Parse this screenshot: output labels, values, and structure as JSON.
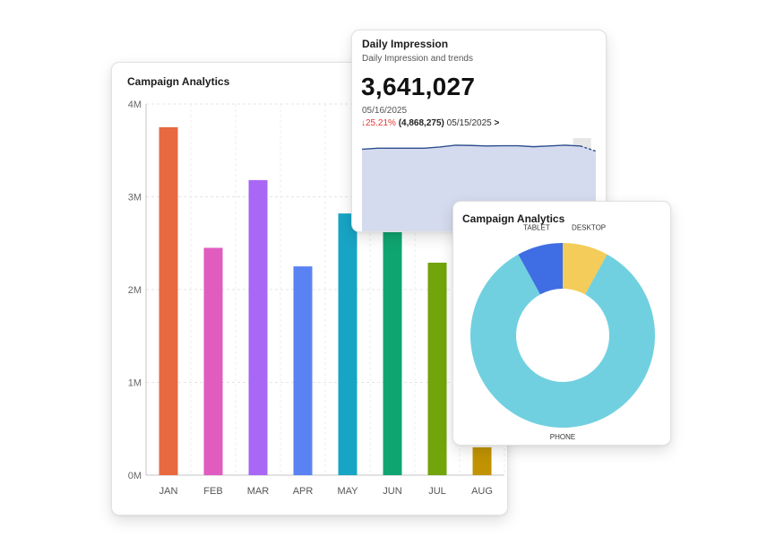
{
  "bar_card": {
    "title": "Campaign Analytics"
  },
  "impression_card": {
    "title": "Daily Impression",
    "subtitle": "Daily Impression and trends",
    "value": "3,641,027",
    "date": "05/16/2025",
    "change_arrow": "↓",
    "change_pct": "25.21%",
    "previous_value": "(4,868,275)",
    "previous_date": "05/15/2025",
    "more_glyph": ">"
  },
  "pie_card": {
    "title": "Campaign Analytics"
  },
  "chart_data": [
    {
      "type": "bar",
      "title": "Campaign Analytics",
      "categories": [
        "JAN",
        "FEB",
        "MAR",
        "APR",
        "MAY",
        "JUN",
        "JUL",
        "AUG"
      ],
      "values": [
        3750000,
        2450000,
        3180000,
        2250000,
        2820000,
        2700000,
        2290000,
        300000
      ],
      "colors": [
        "#e8683f",
        "#e05cbf",
        "#a967f5",
        "#5b82f3",
        "#18a4c4",
        "#0fa571",
        "#72a40b",
        "#c19303"
      ],
      "ylim": [
        0,
        4000000
      ],
      "yticks": [
        0,
        1000000,
        2000000,
        3000000,
        4000000
      ],
      "ytick_labels": [
        "0M",
        "1M",
        "2M",
        "3M",
        "4M"
      ],
      "grid": true,
      "xlabel": "",
      "ylabel": ""
    },
    {
      "type": "area",
      "title": "Daily Impression",
      "values": [
        3.38,
        3.42,
        3.42,
        3.42,
        3.42,
        3.47,
        3.54,
        3.53,
        3.51,
        3.52,
        3.52,
        3.48,
        3.51,
        3.54,
        3.51,
        3.3
      ],
      "ylim": [
        0,
        3.9
      ],
      "line_color": "#2f4f8f",
      "fill_color": "#d5dbee",
      "grid": false
    },
    {
      "type": "pie",
      "title": "Campaign Analytics",
      "labels": [
        "DESKTOP",
        "PHONE",
        "TABLET"
      ],
      "values": [
        8,
        84,
        8
      ],
      "colors": [
        "#f3cc59",
        "#70d0e0",
        "#3f6de3"
      ],
      "donut": true
    }
  ]
}
